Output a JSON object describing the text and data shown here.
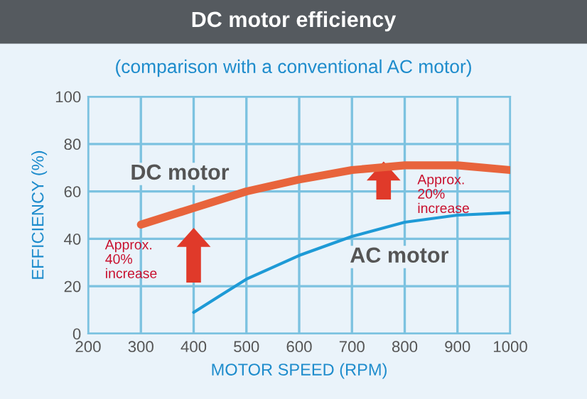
{
  "chart_data": {
    "type": "line",
    "title": "DC motor efficiency",
    "subtitle": "(comparison with a conventional AC motor)",
    "xlabel": "MOTOR SPEED (RPM)",
    "ylabel": "EFFICIENCY (%)",
    "series": [
      {
        "name": "DC motor",
        "color": "#e8643c",
        "x": [
          300,
          400,
          500,
          600,
          700,
          800,
          850,
          900,
          1000
        ],
        "values": [
          46,
          53,
          60,
          65,
          69,
          71,
          71,
          71,
          69
        ]
      },
      {
        "name": "AC motor",
        "color": "#1e9ad6",
        "x": [
          400,
          450,
          500,
          600,
          700,
          800,
          900,
          1000
        ],
        "values": [
          9,
          16,
          23,
          33,
          41,
          47,
          50,
          51
        ]
      }
    ],
    "annotations": [
      "Approx.\n40%\nincrease",
      "Approx.\n20%\nincrease"
    ],
    "xlim": [
      200,
      1000
    ],
    "xticks": [
      200,
      300,
      400,
      500,
      600,
      700,
      800,
      900,
      1000
    ],
    "ylim": [
      0,
      100
    ],
    "yticks": [
      0,
      20,
      40,
      60,
      80,
      100
    ],
    "grid": true,
    "legend": false,
    "marker": "none",
    "line_style": "solid"
  }
}
